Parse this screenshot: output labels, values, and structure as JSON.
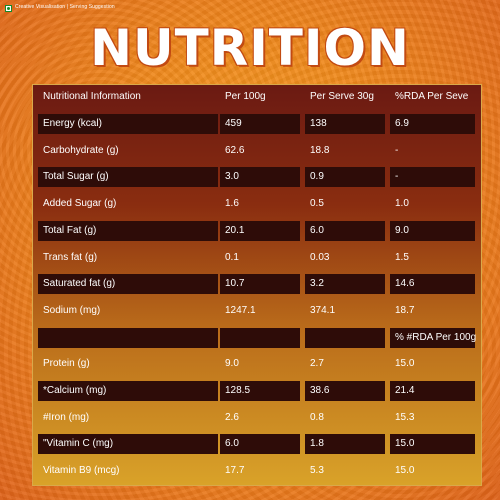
{
  "disclaimer": "Creative Visualisation | Serving Suggestion",
  "title": "NUTRITION",
  "header": [
    "Nutritional Information",
    "Per 100g",
    "Per Serve 30g",
    "%RDA Per Seve"
  ],
  "rows": [
    {
      "cells": [
        "Energy (kcal)",
        "459",
        "138",
        "6.9"
      ],
      "dark": true
    },
    {
      "cells": [
        "Carbohydrate (g)",
        "62.6",
        "18.8",
        "-"
      ],
      "dark": false
    },
    {
      "cells": [
        "Total Sugar (g)",
        "3.0",
        "0.9",
        "-"
      ],
      "dark": true
    },
    {
      "cells": [
        "Added Sugar (g)",
        "1.6",
        "0.5",
        "1.0"
      ],
      "dark": false
    },
    {
      "cells": [
        "Total Fat (g)",
        "20.1",
        "6.0",
        "9.0"
      ],
      "dark": true
    },
    {
      "cells": [
        "Trans fat (g)",
        "0.1",
        "0.03",
        "1.5"
      ],
      "dark": false
    },
    {
      "cells": [
        "Saturated fat (g)",
        "10.7",
        "3.2",
        "14.6"
      ],
      "dark": true
    },
    {
      "cells": [
        "Sodium (mg)",
        "1247.1",
        "374.1",
        "18.7"
      ],
      "dark": false
    },
    {
      "cells": [
        "",
        "",
        "",
        "% #RDA Per 100g"
      ],
      "dark": true
    },
    {
      "cells": [
        "Protein (g)",
        "9.0",
        "2.7",
        "15.0"
      ],
      "dark": false
    },
    {
      "cells": [
        "*Calcium (mg)",
        "128.5",
        "38.6",
        "21.4"
      ],
      "dark": true
    },
    {
      "cells": [
        "#Iron (mg)",
        "2.6",
        "0.8",
        "15.3"
      ],
      "dark": false
    },
    {
      "cells": [
        "\"Vitamin C (mg)",
        "6.0",
        "1.8",
        "15.0"
      ],
      "dark": true
    },
    {
      "cells": [
        "Vitamin B9 (mcg)",
        "17.7",
        "5.3",
        "15.0"
      ],
      "dark": false
    }
  ]
}
